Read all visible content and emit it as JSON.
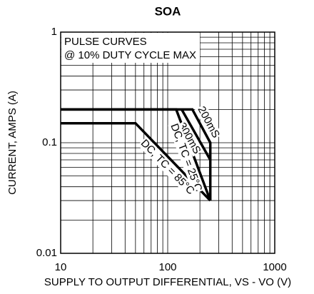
{
  "chart_data": {
    "type": "line",
    "title": "SOA",
    "xlabel": "SUPPLY TO OUTPUT DIFFERENTIAL, VS - VO (V)",
    "ylabel": "CURRENT, AMPS (A)",
    "annotations": [
      "PULSE CURVES",
      "@ 10% DUTY CYCLE MAX"
    ],
    "xscale": "log",
    "yscale": "log",
    "xlim": [
      10,
      1000
    ],
    "ylim": [
      0.01,
      1
    ],
    "xticks": [
      10,
      100,
      1000
    ],
    "yticks": [
      0.01,
      0.1,
      1
    ],
    "grid": true,
    "series": [
      {
        "name": "200mS",
        "color": "#000000",
        "x": [
          10,
          170,
          250,
          250
        ],
        "values": [
          0.2,
          0.2,
          0.1,
          0.03
        ]
      },
      {
        "name": "300mS",
        "color": "#000000",
        "x": [
          135,
          250
        ],
        "values": [
          0.2,
          0.07
        ]
      },
      {
        "name": "DC, TC = 25°C",
        "color": "#000000",
        "x": [
          10,
          120,
          250
        ],
        "values": [
          0.2,
          0.2,
          0.03
        ]
      },
      {
        "name": "DC, TC = 85°C",
        "color": "#000000",
        "x": [
          10,
          50,
          250
        ],
        "values": [
          0.15,
          0.15,
          0.03
        ]
      }
    ]
  }
}
